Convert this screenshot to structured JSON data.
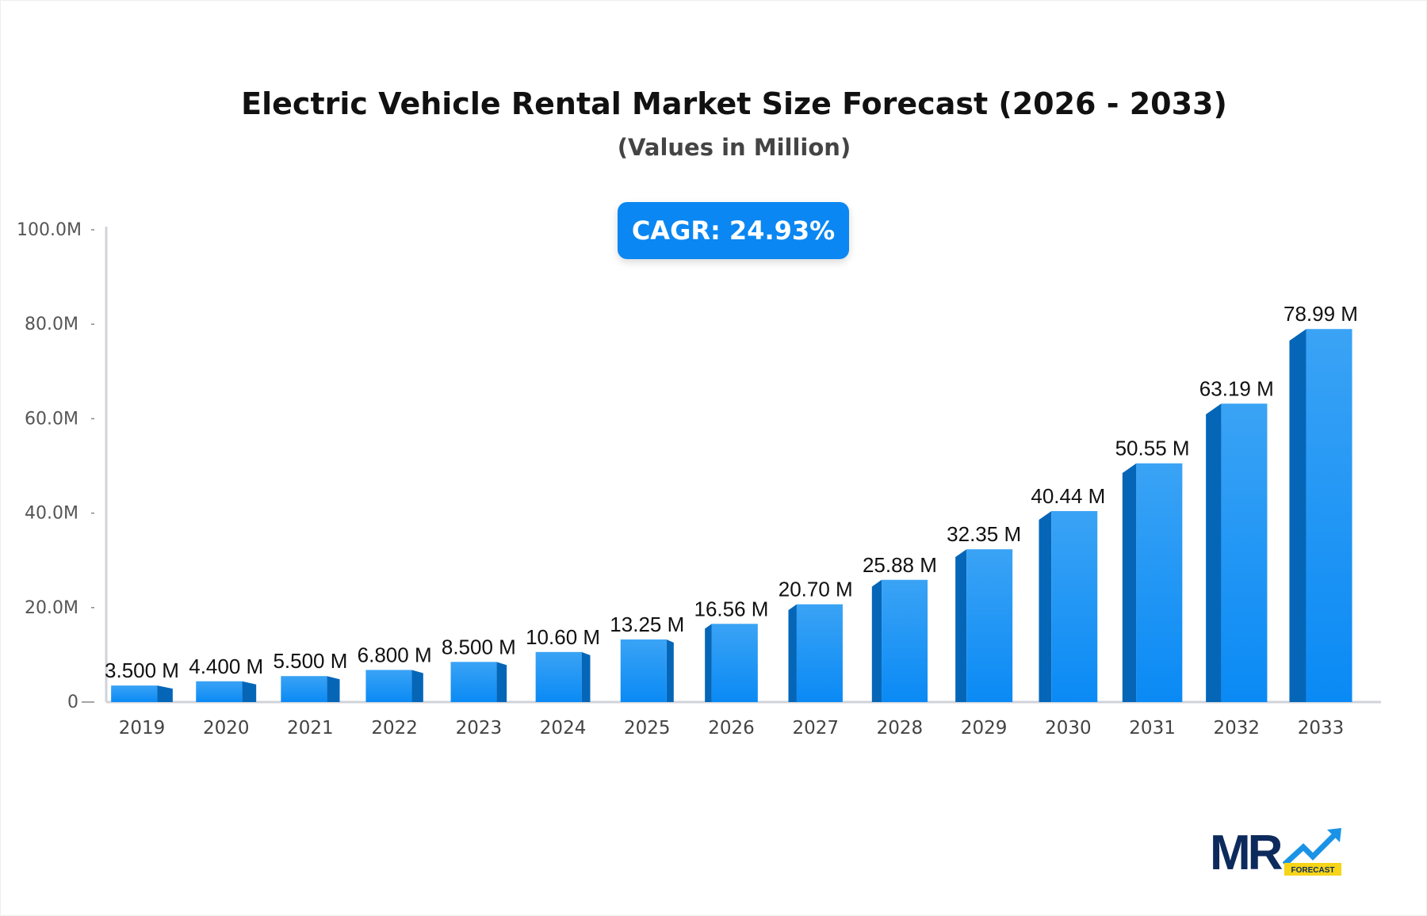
{
  "chart_data": {
    "type": "bar",
    "title": "Electric Vehicle Rental Market Size Forecast (2026 - 2033)",
    "subtitle": "(Values in Million)",
    "annotation": "CAGR: 24.93%",
    "categories": [
      "2019",
      "2020",
      "2021",
      "2022",
      "2023",
      "2024",
      "2025",
      "2026",
      "2027",
      "2028",
      "2029",
      "2030",
      "2031",
      "2032",
      "2033"
    ],
    "values": [
      3.5,
      4.4,
      5.5,
      6.8,
      8.5,
      10.6,
      13.25,
      16.56,
      20.7,
      25.88,
      32.35,
      40.44,
      50.55,
      63.19,
      78.99
    ],
    "data_labels": [
      "3.500 M",
      "4.400 M",
      "5.500 M",
      "6.800 M",
      "8.500 M",
      "10.60 M",
      "13.25 M",
      "16.56 M",
      "20.70 M",
      "25.88 M",
      "32.35 M",
      "40.44 M",
      "50.55 M",
      "63.19 M",
      "78.99 M"
    ],
    "ylim": [
      0,
      100
    ],
    "yticks": [
      0,
      20,
      40,
      60,
      80,
      100
    ],
    "ytick_labels": [
      "0",
      "20.0M",
      "40.0M",
      "60.0M",
      "80.0M",
      "100.0M"
    ],
    "xlabel": "",
    "ylabel": "",
    "grid": false,
    "colors": {
      "bar": "#1a93f5",
      "bar_side": "#0566b8",
      "cagr_bg": "#0a87f2"
    }
  },
  "logo": {
    "text": "MR",
    "tag": "FORECAST"
  }
}
